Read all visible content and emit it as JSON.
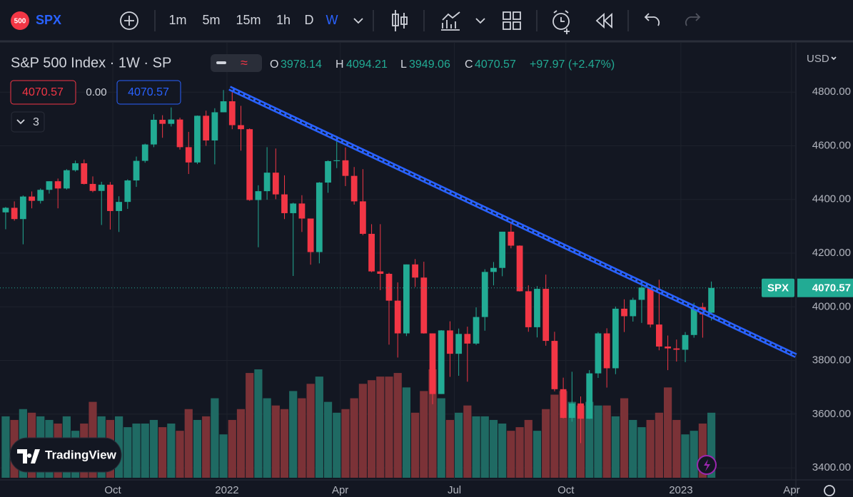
{
  "toolbar": {
    "symbol": "SPX",
    "badge": "500",
    "intervals": [
      "1m",
      "5m",
      "15m",
      "1h",
      "D",
      "W"
    ],
    "active_interval": "W"
  },
  "legend": {
    "title": "S&P 500 Index · 1W · SP",
    "open_label": "O",
    "high_label": "H",
    "low_label": "L",
    "close_label": "C",
    "change": "+97.97 (+2.47%)",
    "spread": "0.00",
    "indicator_count": "3"
  },
  "currency": "USD",
  "price_tag": "SPX",
  "logo": "TradingView",
  "chart_data": {
    "type": "candlestick",
    "up_color": "#22ab94",
    "down_color": "#f23645",
    "volume_up_color": "#1f6a63",
    "volume_down_color": "#7b3237",
    "ylim": [
      3355,
      4984
    ],
    "yticks": [
      {
        "value": 3400,
        "label": "3400.00"
      },
      {
        "value": 3600,
        "label": "3600.00"
      },
      {
        "value": 3800,
        "label": "3800.00"
      },
      {
        "value": 4000,
        "label": "4000.00"
      },
      {
        "value": 4200,
        "label": "4200.00"
      },
      {
        "value": 4400,
        "label": "4400.00"
      },
      {
        "value": 4600,
        "label": "4600.00"
      },
      {
        "value": 4800,
        "label": "4800.00"
      }
    ],
    "xticks": [
      {
        "value": 12.3,
        "label": "Oct"
      },
      {
        "value": 25.4,
        "label": "2022"
      },
      {
        "value": 38.4,
        "label": "Apr"
      },
      {
        "value": 51.5,
        "label": "Jul"
      },
      {
        "value": 64.3,
        "label": "Oct"
      },
      {
        "value": 77.5,
        "label": "2023"
      },
      {
        "value": 90.2,
        "label": "Apr"
      }
    ],
    "xlim": [
      -0.65,
      90.7
    ],
    "grid": true,
    "ohlc": [
      [
        4352,
        4372,
        4289,
        4369
      ],
      [
        4369,
        4393,
        4321,
        4327
      ],
      [
        4327,
        4415,
        4233,
        4411
      ],
      [
        4411,
        4430,
        4367,
        4395
      ],
      [
        4395,
        4441,
        4385,
        4436
      ],
      [
        4436,
        4468,
        4422,
        4468
      ],
      [
        4468,
        4478,
        4367,
        4441
      ],
      [
        4441,
        4513,
        4437,
        4509
      ],
      [
        4509,
        4545,
        4504,
        4535
      ],
      [
        4535,
        4549,
        4456,
        4458
      ],
      [
        4458,
        4486,
        4427,
        4432
      ],
      [
        4432,
        4466,
        4305,
        4455
      ],
      [
        4455,
        4465,
        4288,
        4357
      ],
      [
        4357,
        4412,
        4279,
        4391
      ],
      [
        4391,
        4475,
        4365,
        4471
      ],
      [
        4471,
        4560,
        4447,
        4544
      ],
      [
        4544,
        4608,
        4537,
        4605
      ],
      [
        4605,
        4718,
        4595,
        4697
      ],
      [
        4697,
        4714,
        4630,
        4682
      ],
      [
        4682,
        4743,
        4672,
        4698
      ],
      [
        4698,
        4705,
        4586,
        4595
      ],
      [
        4595,
        4652,
        4495,
        4538
      ],
      [
        4538,
        4713,
        4532,
        4712
      ],
      [
        4712,
        4731,
        4600,
        4620
      ],
      [
        4620,
        4740,
        4531,
        4725
      ],
      [
        4725,
        4808,
        4725,
        4766
      ],
      [
        4766,
        4818,
        4662,
        4677
      ],
      [
        4677,
        4749,
        4582,
        4662
      ],
      [
        4662,
        4665,
        4395,
        4398
      ],
      [
        4398,
        4453,
        4222,
        4431
      ],
      [
        4431,
        4595,
        4399,
        4500
      ],
      [
        4500,
        4590,
        4401,
        4419
      ],
      [
        4419,
        4490,
        4327,
        4349
      ],
      [
        4349,
        4388,
        4115,
        4385
      ],
      [
        4385,
        4416,
        4279,
        4329
      ],
      [
        4329,
        4329,
        4157,
        4204
      ],
      [
        4204,
        4465,
        4162,
        4463
      ],
      [
        4463,
        4546,
        4425,
        4543
      ],
      [
        4543,
        4637,
        4517,
        4546
      ],
      [
        4546,
        4594,
        4450,
        4488
      ],
      [
        4488,
        4521,
        4381,
        4393
      ],
      [
        4393,
        4513,
        4267,
        4272
      ],
      [
        4272,
        4308,
        4129,
        4132
      ],
      [
        4132,
        4308,
        4062,
        4123
      ],
      [
        4123,
        4127,
        3859,
        4023
      ],
      [
        4023,
        4091,
        3811,
        3901
      ],
      [
        3901,
        4158,
        3891,
        4158
      ],
      [
        4158,
        4178,
        4074,
        4109
      ],
      [
        4109,
        4168,
        3900,
        3901
      ],
      [
        3901,
        3901,
        3637,
        3675
      ],
      [
        3675,
        3913,
        3675,
        3912
      ],
      [
        3912,
        3946,
        3739,
        3825
      ],
      [
        3825,
        3919,
        3743,
        3899
      ],
      [
        3899,
        3926,
        3721,
        3863
      ],
      [
        3863,
        3998,
        3858,
        3962
      ],
      [
        3962,
        4140,
        3911,
        4130
      ],
      [
        4130,
        4167,
        4080,
        4145
      ],
      [
        4145,
        4280,
        4114,
        4280
      ],
      [
        4280,
        4325,
        4218,
        4228
      ],
      [
        4228,
        4229,
        4057,
        4058
      ],
      [
        4058,
        4080,
        3907,
        3924
      ],
      [
        3924,
        4077,
        3886,
        4067
      ],
      [
        4067,
        4120,
        3855,
        3873
      ],
      [
        3873,
        3907,
        3685,
        3693
      ],
      [
        3693,
        3736,
        3584,
        3586
      ],
      [
        3586,
        3758,
        3572,
        3640
      ],
      [
        3640,
        3666,
        3492,
        3583
      ],
      [
        3583,
        3764,
        3582,
        3752
      ],
      [
        3752,
        3906,
        3735,
        3901
      ],
      [
        3901,
        3920,
        3699,
        3771
      ],
      [
        3771,
        4001,
        3749,
        3993
      ],
      [
        3993,
        4028,
        3906,
        3965
      ],
      [
        3965,
        4034,
        3945,
        4026
      ],
      [
        4026,
        4100,
        3940,
        4072
      ],
      [
        4072,
        4077,
        3923,
        3934
      ],
      [
        3934,
        4101,
        3838,
        3852
      ],
      [
        3852,
        3893,
        3764,
        3845
      ],
      [
        3845,
        3878,
        3796,
        3840
      ],
      [
        3840,
        3906,
        3794,
        3895
      ],
      [
        3895,
        4015,
        3885,
        3999
      ],
      [
        3999,
        4015,
        3885,
        3972
      ],
      [
        3978.14,
        4094.21,
        3949.06,
        4070.57
      ]
    ],
    "volume": [
      17,
      16,
      19,
      18,
      17,
      16,
      15,
      17,
      13,
      15,
      21,
      17,
      16,
      17,
      14,
      15,
      15,
      16,
      14,
      15,
      13,
      19,
      16,
      17,
      22,
      12,
      16,
      19,
      29,
      30,
      22,
      20,
      19,
      24,
      22,
      26,
      28,
      21,
      18,
      19,
      22,
      26,
      27,
      28,
      28,
      29,
      25,
      18,
      24,
      30,
      22,
      16,
      18,
      20,
      17,
      17,
      16,
      15,
      13,
      14,
      16,
      13,
      19,
      23,
      24,
      21,
      20,
      21,
      20,
      20,
      17,
      22,
      16,
      14,
      16,
      18,
      25,
      16,
      12,
      13,
      15,
      18
    ],
    "trendline": {
      "color": "#2962ff",
      "start": {
        "index": 25.7,
        "price": 4815
      },
      "end": {
        "index": 90.7,
        "price": 3818
      }
    }
  }
}
